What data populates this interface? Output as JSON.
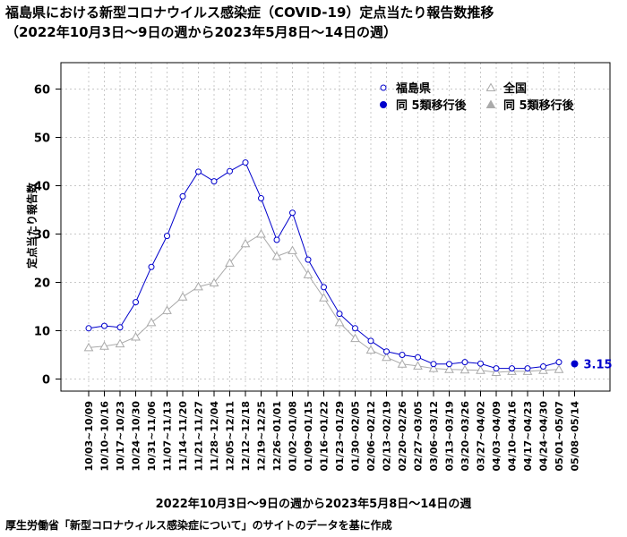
{
  "title": "福島県における新型コロナウイルス感染症（COVID-19）定点当たり報告数推移",
  "subtitle": "（2022年10月3日〜9日の週から2023年5月8日〜14日の週）",
  "source": "厚生労働省「新型コロナウィルス感染症について」のサイトのデータを基に作成",
  "chart_data": {
    "type": "line",
    "title": "福島県における新型コロナウイルス感染症（COVID-19）定点当たり報告数推移",
    "xlabel": "2022年10月3日〜9日の週から2023年5月8日〜14日の週",
    "ylabel": "定点当たり報告数",
    "ylim": [
      0,
      65
    ],
    "yticks": [
      0,
      10,
      20,
      30,
      40,
      50,
      60
    ],
    "grid": true,
    "legend_position": "top-right",
    "categories": [
      "10/03~10/09",
      "10/10~10/16",
      "10/17~10/23",
      "10/24~10/30",
      "10/31~11/06",
      "11/07~11/13",
      "11/14~11/20",
      "11/21~11/27",
      "11/28~12/04",
      "12/05~12/11",
      "12/12~12/18",
      "12/19~12/25",
      "12/26~01/01",
      "01/02~01/08",
      "01/09~01/15",
      "01/16~01/22",
      "01/23~01/29",
      "01/30~02/05",
      "02/06~02/12",
      "02/13~02/19",
      "02/20~02/26",
      "02/27~03/05",
      "03/06~03/12",
      "03/13~03/19",
      "03/20~03/26",
      "03/27~04/02",
      "04/03~04/09",
      "04/10~04/16",
      "04/17~04/23",
      "04/24~04/30",
      "05/01~05/07",
      "05/08~05/14"
    ],
    "series": [
      {
        "name": "福島県",
        "marker": "open-circle",
        "color": "#0000cc",
        "values": [
          10.5,
          11.0,
          10.7,
          15.9,
          23.2,
          29.6,
          37.8,
          42.9,
          40.9,
          43.0,
          44.8,
          37.4,
          28.8,
          34.4,
          24.7,
          19.0,
          13.5,
          10.5,
          7.9,
          5.7,
          5.0,
          4.5,
          3.1,
          3.1,
          3.5,
          3.2,
          2.2,
          2.2,
          2.2,
          2.6,
          3.5,
          null
        ]
      },
      {
        "name": "同 5類移行後",
        "marker": "filled-circle",
        "color": "#0000cc",
        "values": [
          null,
          null,
          null,
          null,
          null,
          null,
          null,
          null,
          null,
          null,
          null,
          null,
          null,
          null,
          null,
          null,
          null,
          null,
          null,
          null,
          null,
          null,
          null,
          null,
          null,
          null,
          null,
          null,
          null,
          null,
          null,
          3.15
        ]
      },
      {
        "name": "全国",
        "marker": "open-triangle",
        "color": "#aaaaaa",
        "values": [
          6.5,
          6.8,
          7.3,
          8.7,
          11.7,
          14.2,
          17.0,
          19.1,
          19.9,
          24.0,
          28.0,
          30.0,
          25.4,
          26.6,
          21.6,
          16.8,
          11.7,
          8.4,
          6.0,
          4.5,
          3.1,
          2.7,
          2.2,
          2.0,
          1.9,
          1.8,
          1.4,
          1.6,
          1.6,
          1.8,
          2.0,
          null
        ]
      },
      {
        "name": "同 5類移行後",
        "marker": "filled-triangle",
        "color": "#aaaaaa",
        "values": [
          null,
          null,
          null,
          null,
          null,
          null,
          null,
          null,
          null,
          null,
          null,
          null,
          null,
          null,
          null,
          null,
          null,
          null,
          null,
          null,
          null,
          null,
          null,
          null,
          null,
          null,
          null,
          null,
          null,
          null,
          null,
          null
        ]
      }
    ],
    "annotations": [
      {
        "category": "05/08~05/14",
        "text": "3.15",
        "color": "#0000cc"
      }
    ]
  }
}
